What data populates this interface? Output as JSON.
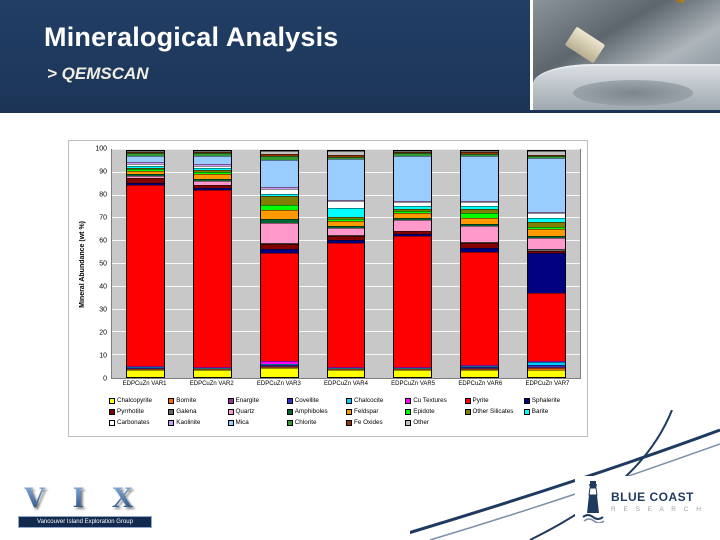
{
  "slide": {
    "title": "Mineralogical Analysis",
    "subtitle": "> QEMSCAN",
    "header_bg": "#1C3557"
  },
  "chart_data": {
    "type": "bar",
    "stacked": true,
    "title": "",
    "xlabel": "",
    "ylabel": "Mineral Abundance (wt %)",
    "ylim": [
      0,
      100
    ],
    "yticks": [
      0,
      10,
      20,
      30,
      40,
      50,
      60,
      70,
      80,
      90,
      100
    ],
    "grid": true,
    "plot_bg": "#C8C8C8",
    "legend_position": "bottom",
    "categories": [
      "EDPCuZn VAR1",
      "EDPCuZn VAR2",
      "EDPCuZn VAR3",
      "EDPCuZn VAR4",
      "EDPCuZn VAR5",
      "EDPCuZn VAR6",
      "EDPCuZn VAR7"
    ],
    "series": [
      {
        "name": "Chalcopyrite",
        "color": "#FFFF00",
        "values": [
          3,
          3,
          4,
          3,
          3,
          3,
          3
        ]
      },
      {
        "name": "Bornite",
        "color": "#FF6600",
        "values": [
          0.5,
          0.5,
          0.5,
          0.5,
          0.5,
          0.5,
          1
        ]
      },
      {
        "name": "Enargite",
        "color": "#993399",
        "values": [
          0,
          0,
          0.5,
          0,
          0,
          0.5,
          0.5
        ]
      },
      {
        "name": "Covellite",
        "color": "#3333CC",
        "values": [
          0.5,
          0,
          0.5,
          0,
          0,
          0.5,
          1
        ]
      },
      {
        "name": "Chalcocite",
        "color": "#00CCFF",
        "values": [
          0.5,
          0.5,
          0.5,
          0.5,
          0.5,
          0.5,
          1
        ]
      },
      {
        "name": "Cu Textures",
        "color": "#FF00FF",
        "values": [
          0.5,
          0.5,
          1,
          0.5,
          0.5,
          0.5,
          0.5
        ]
      },
      {
        "name": "Pyrite",
        "color": "#FF0000",
        "values": [
          80,
          80,
          48,
          55,
          58,
          50,
          30
        ]
      },
      {
        "name": "Sphalerite",
        "color": "#000080",
        "values": [
          1,
          1,
          2,
          1,
          1,
          2,
          18
        ]
      },
      {
        "name": "Pyrrhotite",
        "color": "#800000",
        "values": [
          2,
          1,
          2,
          2,
          1,
          2,
          1
        ]
      },
      {
        "name": "Galena",
        "color": "#666666",
        "values": [
          0,
          0,
          0.5,
          0.5,
          0,
          0.5,
          0.5
        ]
      },
      {
        "name": "Quartz",
        "color": "#FF99CC",
        "values": [
          1,
          2,
          9,
          3,
          5,
          7,
          5
        ]
      },
      {
        "name": "Amphiboles",
        "color": "#006633",
        "values": [
          1,
          1,
          2,
          1,
          1,
          1,
          1
        ]
      },
      {
        "name": "Feldspar",
        "color": "#FF9900",
        "values": [
          1,
          2,
          4,
          2,
          2,
          3,
          3
        ]
      },
      {
        "name": "Epidote",
        "color": "#00FF00",
        "values": [
          1,
          1,
          2,
          1,
          1,
          2,
          1
        ]
      },
      {
        "name": "Other Silicates",
        "color": "#808000",
        "values": [
          0.5,
          1,
          4,
          1,
          1,
          2,
          2
        ]
      },
      {
        "name": "Barite",
        "color": "#00FFFF",
        "values": [
          1,
          1,
          1,
          4,
          1,
          1,
          2
        ]
      },
      {
        "name": "Carbonates",
        "color": "#FFFFFF",
        "values": [
          1,
          1,
          2,
          3,
          2,
          2,
          2
        ]
      },
      {
        "name": "Kaolinite",
        "color": "#CC99FF",
        "values": [
          0.5,
          0.5,
          1,
          0.5,
          0.5,
          0.5,
          0.5
        ]
      },
      {
        "name": "Mica",
        "color": "#99CCFF",
        "values": [
          3,
          4,
          12,
          18,
          20,
          20,
          24
        ]
      },
      {
        "name": "Chlorite",
        "color": "#339933",
        "values": [
          1,
          1,
          2,
          1,
          1,
          1,
          1
        ]
      },
      {
        "name": "Fe Oxides",
        "color": "#993300",
        "values": [
          0.5,
          0.5,
          1,
          1,
          0.5,
          0.5,
          0.5
        ]
      },
      {
        "name": "Other",
        "color": "#C0C0C0",
        "values": [
          0.5,
          0.5,
          1,
          1.5,
          0.5,
          0.5,
          1.5
        ]
      }
    ]
  },
  "footer": {
    "vix": {
      "letters": "V I X",
      "banner": "Vancouver Island Exploration Group"
    },
    "blue_coast": {
      "line1": "BLUE COAST",
      "line2": "R E S E A R C H"
    }
  }
}
